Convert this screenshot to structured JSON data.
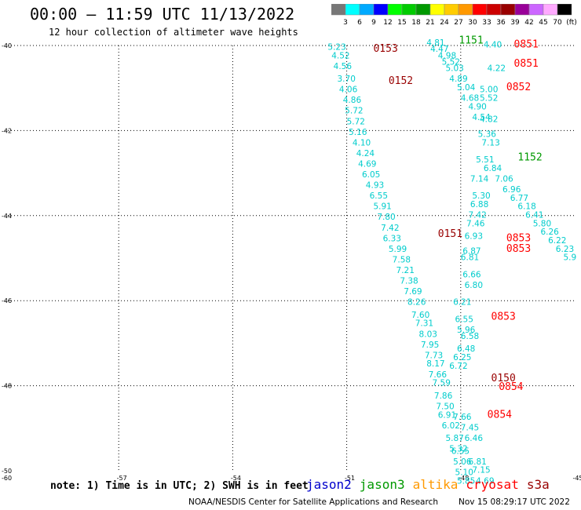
{
  "title": "00:00 – 11:59 UTC 11/13/2022",
  "subtitle": "12 hour collection of altimeter wave heights",
  "color_scale": {
    "colors": [
      "#777777",
      "#00ffff",
      "#00aaff",
      "#0000ff",
      "#00ff00",
      "#00cc00",
      "#009900",
      "#ffff00",
      "#ffcc00",
      "#ff9900",
      "#ff0000",
      "#cc0000",
      "#990000",
      "#990099",
      "#cc66ff",
      "#ffaaff",
      "#000000"
    ],
    "ticks": [
      "3",
      "6",
      "9",
      "12",
      "15",
      "18",
      "21",
      "24",
      "27",
      "30",
      "33",
      "36",
      "39",
      "42",
      "45",
      "70",
      "(ft)"
    ]
  },
  "map": {
    "lon_labels": [
      "-57",
      "-54",
      "-51",
      "-48",
      "-45"
    ],
    "lat_labels": [
      "-40",
      "-42",
      "-44",
      "-46",
      "-48",
      "-50"
    ],
    "corner_label": "-60"
  },
  "chart_data": {
    "type": "scatter",
    "xlabel": "",
    "ylabel": "",
    "xlim": [
      -60,
      -45
    ],
    "ylim": [
      -50,
      -40
    ],
    "grid": true,
    "points": [
      {
        "lon": -51.5,
        "lat": -40.1,
        "v": "5.23"
      },
      {
        "lon": -51.4,
        "lat": -40.3,
        "v": "4.52"
      },
      {
        "lon": -51.35,
        "lat": -40.55,
        "v": "4.56"
      },
      {
        "lon": -51.25,
        "lat": -40.85,
        "v": "3.70"
      },
      {
        "lon": -51.2,
        "lat": -41.1,
        "v": "4.06"
      },
      {
        "lon": -51.1,
        "lat": -41.35,
        "v": "4.86"
      },
      {
        "lon": -51.05,
        "lat": -41.6,
        "v": "5.72"
      },
      {
        "lon": -51.0,
        "lat": -41.85,
        "v": "5.72"
      },
      {
        "lon": -50.95,
        "lat": -42.1,
        "v": "5.16"
      },
      {
        "lon": -50.85,
        "lat": -42.35,
        "v": "4.10"
      },
      {
        "lon": -50.75,
        "lat": -42.6,
        "v": "4.24"
      },
      {
        "lon": -50.7,
        "lat": -42.85,
        "v": "4.69"
      },
      {
        "lon": -50.6,
        "lat": -43.1,
        "v": "6.05"
      },
      {
        "lon": -50.5,
        "lat": -43.35,
        "v": "4.93"
      },
      {
        "lon": -50.4,
        "lat": -43.6,
        "v": "6.55"
      },
      {
        "lon": -50.3,
        "lat": -43.85,
        "v": "5.91"
      },
      {
        "lon": -50.2,
        "lat": -44.1,
        "v": "7.80"
      },
      {
        "lon": -50.1,
        "lat": -44.35,
        "v": "7.42"
      },
      {
        "lon": -50.05,
        "lat": -44.6,
        "v": "6.33"
      },
      {
        "lon": -49.9,
        "lat": -44.85,
        "v": "5.99"
      },
      {
        "lon": -49.8,
        "lat": -45.1,
        "v": "7.58"
      },
      {
        "lon": -49.7,
        "lat": -45.35,
        "v": "7.21"
      },
      {
        "lon": -49.6,
        "lat": -45.6,
        "v": "7.38"
      },
      {
        "lon": -49.5,
        "lat": -45.85,
        "v": "7.69"
      },
      {
        "lon": -49.4,
        "lat": -46.1,
        "v": "8.26"
      },
      {
        "lon": -49.3,
        "lat": -46.4,
        "v": "7.60"
      },
      {
        "lon": -49.2,
        "lat": -46.6,
        "v": "7.31"
      },
      {
        "lon": -49.1,
        "lat": -46.85,
        "v": "8.03"
      },
      {
        "lon": -49.05,
        "lat": -47.1,
        "v": "7.95"
      },
      {
        "lon": -48.95,
        "lat": -47.35,
        "v": "7.73"
      },
      {
        "lon": -48.9,
        "lat": -47.55,
        "v": "8.17"
      },
      {
        "lon": -48.85,
        "lat": -47.8,
        "v": "7.66"
      },
      {
        "lon": -48.75,
        "lat": -48.0,
        "v": "7.59"
      },
      {
        "lon": -48.7,
        "lat": -48.3,
        "v": "7.86"
      },
      {
        "lon": -48.65,
        "lat": -48.55,
        "v": "7.50"
      },
      {
        "lon": -48.6,
        "lat": -48.75,
        "v": "6.91"
      },
      {
        "lon": -48.5,
        "lat": -49.0,
        "v": "6.02"
      },
      {
        "lon": -48.4,
        "lat": -49.3,
        "v": "5.87"
      },
      {
        "lon": -48.3,
        "lat": -49.55,
        "v": "5.32"
      },
      {
        "lon": -48.25,
        "lat": -49.6,
        "v": "6.55"
      },
      {
        "lon": -48.2,
        "lat": -49.85,
        "v": "5.06"
      },
      {
        "lon": -48.15,
        "lat": -50.1,
        "v": "5.10"
      },
      {
        "lon": -48.1,
        "lat": -50.3,
        "v": "5.85"
      },
      {
        "lon": -47.8,
        "lat": -49.85,
        "v": "6.81"
      },
      {
        "lon": -47.7,
        "lat": -50.05,
        "v": "7.15"
      },
      {
        "lon": -47.6,
        "lat": -50.3,
        "v": "4.69"
      },
      {
        "lon": -47.9,
        "lat": -49.3,
        "v": "6.46"
      },
      {
        "lon": -48.0,
        "lat": -49.05,
        "v": "7.45"
      },
      {
        "lon": -48.2,
        "lat": -48.8,
        "v": "7.66"
      },
      {
        "lon": -48.3,
        "lat": -47.6,
        "v": "6.72"
      },
      {
        "lon": -48.2,
        "lat": -47.4,
        "v": "6.25"
      },
      {
        "lon": -48.1,
        "lat": -47.2,
        "v": "6.48"
      },
      {
        "lon": -48.0,
        "lat": -46.9,
        "v": "6.58"
      },
      {
        "lon": -48.1,
        "lat": -46.75,
        "v": "5.96"
      },
      {
        "lon": -48.15,
        "lat": -46.5,
        "v": "6.55"
      },
      {
        "lon": -48.2,
        "lat": -46.1,
        "v": "6.21"
      },
      {
        "lon": -47.9,
        "lat": -45.7,
        "v": "6.80"
      },
      {
        "lon": -47.95,
        "lat": -45.45,
        "v": "6.66"
      },
      {
        "lon": -48.0,
        "lat": -45.05,
        "v": "6.81"
      },
      {
        "lon": -47.95,
        "lat": -44.9,
        "v": "6.87"
      },
      {
        "lon": -47.9,
        "lat": -44.55,
        "v": "6.93"
      },
      {
        "lon": -47.85,
        "lat": -44.25,
        "v": "7.46"
      },
      {
        "lon": -47.8,
        "lat": -44.05,
        "v": "7.42"
      },
      {
        "lon": -47.75,
        "lat": -43.8,
        "v": "6.88"
      },
      {
        "lon": -47.7,
        "lat": -43.6,
        "v": "5.30"
      },
      {
        "lon": -47.75,
        "lat": -43.2,
        "v": "7.14"
      },
      {
        "lon": -47.6,
        "lat": -42.75,
        "v": "5.51"
      },
      {
        "lon": -47.4,
        "lat": -42.95,
        "v": "6.84"
      },
      {
        "lon": -47.1,
        "lat": -43.2,
        "v": "7.06"
      },
      {
        "lon": -46.9,
        "lat": -43.45,
        "v": "6.96"
      },
      {
        "lon": -46.7,
        "lat": -43.65,
        "v": "6.77"
      },
      {
        "lon": -46.5,
        "lat": -43.85,
        "v": "6.18"
      },
      {
        "lon": -46.3,
        "lat": -44.05,
        "v": "6.41"
      },
      {
        "lon": -46.1,
        "lat": -44.25,
        "v": "5.80"
      },
      {
        "lon": -45.9,
        "lat": -44.45,
        "v": "6.26"
      },
      {
        "lon": -45.7,
        "lat": -44.65,
        "v": "6.22"
      },
      {
        "lon": -45.5,
        "lat": -44.85,
        "v": "6.23"
      },
      {
        "lon": -45.3,
        "lat": -45.05,
        "v": "5.9"
      },
      {
        "lon": -47.5,
        "lat": -41.8,
        "v": "4.82"
      },
      {
        "lon": -47.7,
        "lat": -41.75,
        "v": "4.54"
      },
      {
        "lon": -47.8,
        "lat": -41.5,
        "v": "4.90"
      },
      {
        "lon": -48.0,
        "lat": -41.3,
        "v": "4.68"
      },
      {
        "lon": -48.1,
        "lat": -41.05,
        "v": "5.04"
      },
      {
        "lon": -48.3,
        "lat": -40.85,
        "v": "4.89"
      },
      {
        "lon": -48.4,
        "lat": -40.6,
        "v": "5.03"
      },
      {
        "lon": -48.5,
        "lat": -40.45,
        "v": "5.52"
      },
      {
        "lon": -48.6,
        "lat": -40.3,
        "v": "4.98"
      },
      {
        "lon": -48.8,
        "lat": -40.15,
        "v": "4.47"
      },
      {
        "lon": -48.9,
        "lat": -40.0,
        "v": "4.81"
      },
      {
        "lon": -47.4,
        "lat": -40.05,
        "v": "4.40"
      },
      {
        "lon": -47.3,
        "lat": -40.6,
        "v": "4.22"
      },
      {
        "lon": -47.5,
        "lat": -41.1,
        "v": "5.00"
      },
      {
        "lon": -47.5,
        "lat": -41.3,
        "v": "5.52"
      },
      {
        "lon": -47.45,
        "lat": -42.35,
        "v": "7.13"
      },
      {
        "lon": -47.55,
        "lat": -42.15,
        "v": "5.36"
      }
    ],
    "labels": [
      {
        "lon": -50.3,
        "lat": -40.15,
        "text": "0153",
        "color": "#990000"
      },
      {
        "lon": -49.9,
        "lat": -40.9,
        "text": "0152",
        "color": "#990000"
      },
      {
        "lon": -48.6,
        "lat": -44.5,
        "text": "0151",
        "color": "#990000"
      },
      {
        "lon": -47.2,
        "lat": -47.9,
        "text": "0150",
        "color": "#990000"
      },
      {
        "lon": -48.05,
        "lat": -39.95,
        "text": "1151",
        "color": "#009900"
      },
      {
        "lon": -46.5,
        "lat": -42.7,
        "text": "1152",
        "color": "#009900"
      },
      {
        "lon": -46.6,
        "lat": -40.05,
        "text": "0851",
        "color": "#ff0000"
      },
      {
        "lon": -46.6,
        "lat": -40.5,
        "text": "0851",
        "color": "#ff0000"
      },
      {
        "lon": -46.8,
        "lat": -41.05,
        "text": "0852",
        "color": "#ff0000"
      },
      {
        "lon": -46.8,
        "lat": -44.6,
        "text": "0853",
        "color": "#ff0000"
      },
      {
        "lon": -46.8,
        "lat": -44.85,
        "text": "0853",
        "color": "#ff0000"
      },
      {
        "lon": -47.2,
        "lat": -46.45,
        "text": "0853",
        "color": "#ff0000"
      },
      {
        "lon": -47.0,
        "lat": -48.1,
        "text": "0854",
        "color": "#ff0000"
      },
      {
        "lon": -47.3,
        "lat": -48.75,
        "text": "0854",
        "color": "#ff0000"
      }
    ]
  },
  "note": "note: 1) Time is in UTC; 2) SWH is in feet",
  "legend": [
    {
      "label": "jason2",
      "color": "#0000cc"
    },
    {
      "label": "jason3",
      "color": "#009900"
    },
    {
      "label": "altika",
      "color": "#ff9900"
    },
    {
      "label": "cryosat",
      "color": "#ff0000"
    },
    {
      "label": "s3a",
      "color": "#990000"
    }
  ],
  "credit": "NOAA/NESDIS Center for Satellite Applications and Research",
  "timestamp": "Nov 15 08:29:17 UTC 2022"
}
